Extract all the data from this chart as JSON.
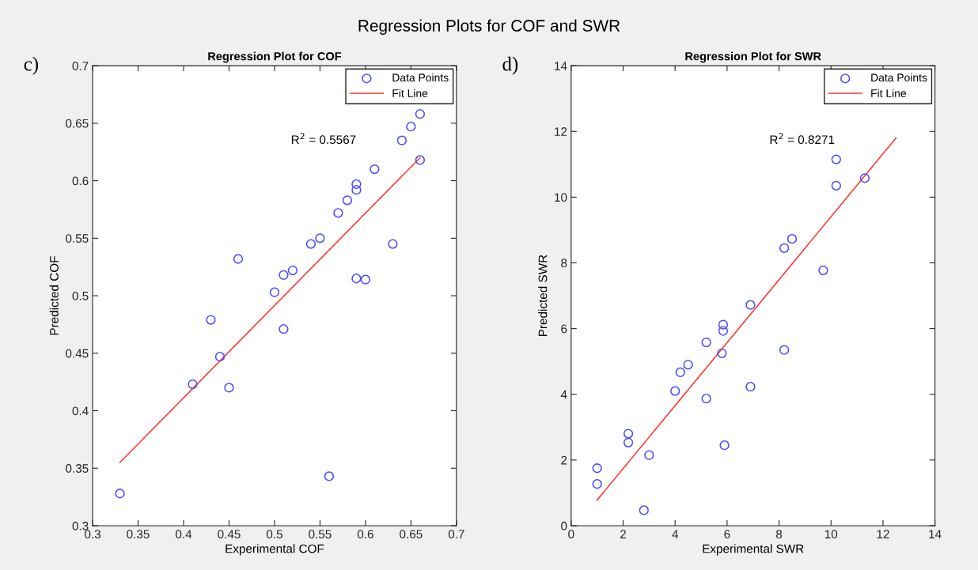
{
  "chart_data": [
    {
      "type": "scatter",
      "title": "Regression Plot for COF",
      "xlabel": "Experimental COF",
      "ylabel": "Predicted COF",
      "annotations": [
        "Regression Plots for COF and SWR",
        "c)",
        "R$^{2}$ = 0.5567"
      ],
      "xlim": [
        0.3,
        0.7
      ],
      "xticks": [
        0.3,
        0.35,
        0.4,
        0.45,
        0.5,
        0.55,
        0.6,
        0.65,
        0.7
      ],
      "ylim": [
        0.3,
        0.7
      ],
      "yticks": [
        0.3,
        0.35,
        0.4,
        0.45,
        0.5,
        0.55,
        0.6,
        0.65,
        0.7
      ],
      "grid": false,
      "legend": "top right",
      "series": [
        {
          "name": "Data Points",
          "marker": "circle",
          "color": "#4a4aff",
          "x": [
            0.33,
            0.41,
            0.43,
            0.44,
            0.45,
            0.46,
            0.5,
            0.51,
            0.51,
            0.52,
            0.54,
            0.55,
            0.56,
            0.57,
            0.58,
            0.59,
            0.59,
            0.59,
            0.6,
            0.61,
            0.63,
            0.64,
            0.65,
            0.66,
            0.66
          ],
          "values": [
            0.328,
            0.423,
            0.479,
            0.447,
            0.42,
            0.532,
            0.503,
            0.518,
            0.471,
            0.522,
            0.545,
            0.55,
            0.343,
            0.572,
            0.583,
            0.597,
            0.592,
            0.515,
            0.514,
            0.61,
            0.545,
            0.635,
            0.647,
            0.658,
            0.618
          ]
        },
        {
          "name": "Fit Line",
          "type": "line",
          "marker": "none",
          "line_style": "solid",
          "color": "#ff3030",
          "x": [
            0.33,
            0.66
          ],
          "values": [
            0.355,
            0.62
          ]
        }
      ]
    },
    {
      "type": "scatter",
      "title": "Regression Plot for SWR",
      "xlabel": "Experimental SWR",
      "ylabel": "Predicted SWR",
      "annotations": [
        "d)",
        "R$^{2}$ = 0.8271"
      ],
      "xlim": [
        0,
        14
      ],
      "xticks": [
        0,
        2,
        4,
        6,
        8,
        10,
        12,
        14
      ],
      "ylim": [
        0,
        14
      ],
      "yticks": [
        0,
        2,
        4,
        6,
        8,
        10,
        12,
        14
      ],
      "grid": false,
      "legend": "top right",
      "series": [
        {
          "name": "Data Points",
          "marker": "circle",
          "color": "#4a4aff",
          "x": [
            1.0,
            1.0,
            2.2,
            2.2,
            2.8,
            3.0,
            4.0,
            4.2,
            4.5,
            5.2,
            5.2,
            5.8,
            5.85,
            5.85,
            5.9,
            6.9,
            6.9,
            8.2,
            8.2,
            8.5,
            9.7,
            10.2,
            10.2,
            11.3
          ],
          "values": [
            1.75,
            1.27,
            2.8,
            2.53,
            0.47,
            2.15,
            4.1,
            4.67,
            4.9,
            3.87,
            5.58,
            5.25,
            5.93,
            6.12,
            2.45,
            6.72,
            4.23,
            8.45,
            5.35,
            8.73,
            7.77,
            11.15,
            10.35,
            10.58
          ]
        },
        {
          "name": "Fit Line",
          "type": "line",
          "marker": "none",
          "line_style": "solid",
          "color": "#ff3030",
          "x": [
            1.0,
            12.5
          ],
          "values": [
            0.78,
            11.8
          ]
        }
      ]
    }
  ]
}
